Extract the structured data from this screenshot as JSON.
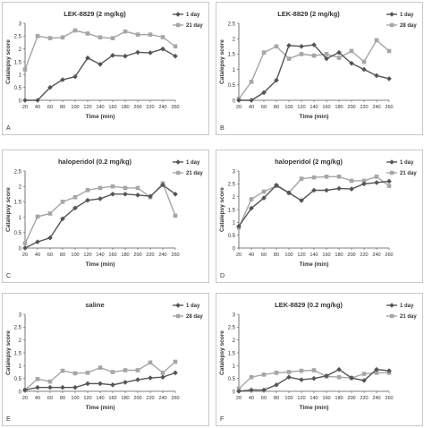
{
  "x_ticks": [
    20,
    40,
    60,
    80,
    100,
    120,
    140,
    160,
    180,
    200,
    220,
    240,
    260
  ],
  "series_colors": {
    "day1": "#555555",
    "chronic": "#a6a6a6"
  },
  "chart_data": [
    {
      "type": "line",
      "panel_letter": "A",
      "title": "LEK-8829 (2 mg/kg)",
      "xlabel": "Time (min)",
      "ylabel": "Catalepsy score",
      "ylim": [
        0,
        3
      ],
      "yticks": [
        0,
        0.5,
        1,
        1.5,
        2,
        2.5,
        3
      ],
      "legend_position": "top-right",
      "x": [
        20,
        40,
        60,
        80,
        100,
        120,
        140,
        160,
        180,
        200,
        220,
        240,
        260
      ],
      "series": [
        {
          "name": "1 day",
          "marker": "diamond",
          "values": [
            0,
            0,
            0.5,
            0.8,
            0.92,
            1.65,
            1.4,
            1.75,
            1.72,
            1.87,
            1.85,
            2.0,
            1.72
          ]
        },
        {
          "name": "21 day",
          "marker": "square",
          "values": [
            1.2,
            2.5,
            2.42,
            2.45,
            2.72,
            2.6,
            2.45,
            2.42,
            2.68,
            2.56,
            2.56,
            2.46,
            2.1
          ]
        }
      ]
    },
    {
      "type": "line",
      "panel_letter": "B",
      "title": "LEK-8829 (2 mg/kg)",
      "xlabel": "Time (min)",
      "ylabel": "Catalepsy score",
      "ylim": [
        0,
        2.5
      ],
      "yticks": [
        0,
        0.5,
        1,
        1.5,
        2,
        2.5
      ],
      "legend_position": "top-right",
      "x": [
        20,
        40,
        60,
        80,
        100,
        120,
        140,
        160,
        180,
        200,
        220,
        240,
        260
      ],
      "series": [
        {
          "name": "1 day",
          "marker": "diamond",
          "values": [
            0,
            0,
            0.25,
            0.65,
            1.78,
            1.75,
            1.8,
            1.35,
            1.55,
            1.2,
            1.0,
            0.8,
            0.7
          ]
        },
        {
          "name": "28 day",
          "marker": "square",
          "values": [
            0.05,
            0.6,
            1.55,
            1.75,
            1.35,
            1.5,
            1.45,
            1.5,
            1.38,
            1.6,
            1.25,
            1.95,
            1.6
          ]
        }
      ]
    },
    {
      "type": "line",
      "panel_letter": "C",
      "title": "haloperidol (0.2 mg/kg)",
      "xlabel": "Time (min)",
      "ylabel": "Catalepsy score",
      "ylim": [
        0,
        2.5
      ],
      "yticks": [
        0,
        0.5,
        1,
        1.5,
        2,
        2.5
      ],
      "legend_position": "top-right",
      "x": [
        20,
        40,
        60,
        80,
        100,
        120,
        140,
        160,
        180,
        200,
        220,
        240,
        260
      ],
      "series": [
        {
          "name": "1 day",
          "marker": "diamond",
          "values": [
            0,
            0.2,
            0.33,
            0.95,
            1.3,
            1.55,
            1.6,
            1.75,
            1.75,
            1.72,
            1.68,
            2.05,
            1.75
          ]
        },
        {
          "name": "21 day",
          "marker": "square",
          "values": [
            0.15,
            1.02,
            1.12,
            1.5,
            1.65,
            1.88,
            1.95,
            2.0,
            1.95,
            1.95,
            1.65,
            2.1,
            1.05
          ]
        }
      ]
    },
    {
      "type": "line",
      "panel_letter": "D",
      "title": "haloperidol (2 mg/kg)",
      "xlabel": "Time (min)",
      "ylabel": "Catalepsy score",
      "ylim": [
        0,
        3
      ],
      "yticks": [
        0,
        0.5,
        1,
        1.5,
        2,
        2.5,
        3
      ],
      "legend_position": "top-right",
      "x": [
        20,
        40,
        60,
        80,
        100,
        120,
        140,
        160,
        180,
        200,
        220,
        240,
        260
      ],
      "series": [
        {
          "name": "1 day",
          "marker": "diamond",
          "values": [
            0.85,
            1.55,
            1.95,
            2.45,
            2.15,
            1.85,
            2.25,
            2.25,
            2.32,
            2.3,
            2.5,
            2.55,
            2.6
          ]
        },
        {
          "name": "21 day",
          "marker": "square",
          "values": [
            0.8,
            1.9,
            2.2,
            2.42,
            2.15,
            2.7,
            2.75,
            2.78,
            2.78,
            2.62,
            2.62,
            2.78,
            2.42
          ]
        }
      ]
    },
    {
      "type": "line",
      "panel_letter": "E",
      "title": "saline",
      "xlabel": "Time (min)",
      "ylabel": "Catalepsy score",
      "ylim": [
        0,
        3
      ],
      "yticks": [
        0,
        0.5,
        1,
        1.5,
        2,
        2.5,
        3
      ],
      "legend_position": "top-right",
      "x": [
        20,
        40,
        60,
        80,
        100,
        120,
        140,
        160,
        180,
        200,
        220,
        240,
        260
      ],
      "series": [
        {
          "name": "1 day",
          "marker": "diamond",
          "values": [
            0.05,
            0.15,
            0.15,
            0.15,
            0.15,
            0.3,
            0.3,
            0.25,
            0.35,
            0.45,
            0.52,
            0.55,
            0.72
          ]
        },
        {
          "name": "28 day",
          "marker": "square",
          "values": [
            0.05,
            0.48,
            0.38,
            0.8,
            0.7,
            0.72,
            0.92,
            0.75,
            0.82,
            0.82,
            1.12,
            0.72,
            1.15
          ]
        }
      ]
    },
    {
      "type": "line",
      "panel_letter": "F",
      "title": "LEK-8829 (0.2 mg/kg)",
      "xlabel": "Time (min)",
      "ylabel": "Catalepsy score",
      "ylim": [
        0,
        3
      ],
      "yticks": [
        0,
        0.5,
        1,
        1.5,
        2,
        2.5,
        3
      ],
      "legend_position": "top-right",
      "x": [
        20,
        40,
        60,
        80,
        100,
        120,
        140,
        160,
        180,
        200,
        220,
        240,
        260
      ],
      "series": [
        {
          "name": "1 day",
          "marker": "diamond",
          "values": [
            0,
            0.05,
            0.05,
            0.25,
            0.55,
            0.45,
            0.5,
            0.6,
            0.85,
            0.52,
            0.42,
            0.85,
            0.8
          ]
        },
        {
          "name": "21 day",
          "marker": "square",
          "values": [
            0.1,
            0.55,
            0.65,
            0.72,
            0.75,
            0.8,
            0.82,
            0.58,
            0.55,
            0.52,
            0.68,
            0.72,
            0.72
          ]
        }
      ]
    }
  ]
}
